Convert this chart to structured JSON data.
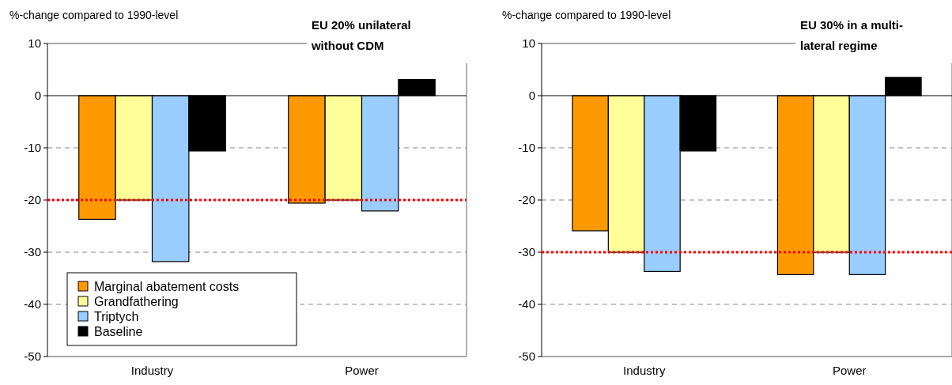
{
  "chart_data": [
    {
      "type": "bar",
      "title": "EU 20% unilateral without CDM",
      "ylabel": "%-change compared to 1990-level",
      "categories": [
        "Industry",
        "Power"
      ],
      "series": [
        {
          "name": "Marginal abatement costs",
          "color": "#ff9900",
          "values": [
            -23.7,
            -20.6
          ]
        },
        {
          "name": "Grandfathering",
          "color": "#ffff99",
          "values": [
            -20,
            -20
          ]
        },
        {
          "name": "Triptych",
          "color": "#99ccff",
          "values": [
            -31.8,
            -22.1
          ]
        },
        {
          "name": "Baseline",
          "color": "#000000",
          "values": [
            -10.6,
            3.1
          ]
        }
      ],
      "ylim": [
        -50,
        10
      ],
      "yticks": [
        -50,
        -40,
        -30,
        -20,
        -10,
        0,
        10
      ],
      "grid": "y",
      "legend": "bottom left",
      "ref_lines": [
        {
          "axis": "y",
          "value": -20,
          "color": "#ff0000",
          "line_style": "dotted"
        }
      ]
    },
    {
      "type": "bar",
      "title": "EU 30% in a multi-lateral regime",
      "ylabel": "%-change compared to 1990-level",
      "categories": [
        "Industry",
        "Power"
      ],
      "series": [
        {
          "color": "#ff9900",
          "values": [
            -25.9,
            -34.3
          ]
        },
        {
          "color": "#ffff99",
          "values": [
            -30,
            -30
          ]
        },
        {
          "color": "#99ccff",
          "values": [
            -33.7,
            -34.3
          ]
        },
        {
          "color": "#000000",
          "values": [
            -10.6,
            3.5
          ]
        }
      ],
      "ylim": [
        -50,
        10
      ],
      "yticks": [
        -50,
        -40,
        -30,
        -20,
        -10,
        0,
        10
      ],
      "grid": "y",
      "legend": false,
      "ref_lines": [
        {
          "axis": "y",
          "value": -30,
          "color": "#ff0000",
          "line_style": "dotted"
        }
      ]
    }
  ]
}
